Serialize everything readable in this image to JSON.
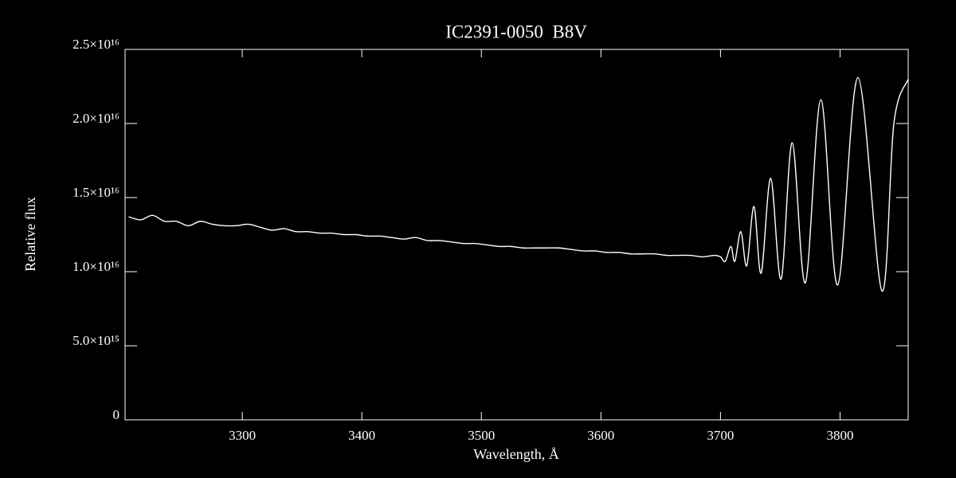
{
  "chart_data": {
    "type": "line",
    "title": "IC2391-0050  B8V",
    "xlabel": "Wavelength, Å",
    "ylabel": "Relative flux",
    "xlim": [
      3202,
      3857
    ],
    "ylim": [
      0,
      2.5e+16
    ],
    "xticks": [
      3300,
      3400,
      3500,
      3600,
      3700,
      3800
    ],
    "yticks": [
      0,
      {
        "value": 5000000000000000.0,
        "label": "5.0×10¹⁵"
      },
      {
        "value": 1e+16,
        "label": "1.0×10¹⁶"
      },
      {
        "value": 1.5e+16,
        "label": "1.5×10¹⁶"
      },
      {
        "value": 2e+16,
        "label": "2.0×10¹⁶"
      },
      {
        "value": 2.5e+16,
        "label": "2.5×10¹⁶"
      }
    ],
    "x": [
      3205,
      3215,
      3225,
      3235,
      3245,
      3255,
      3265,
      3275,
      3285,
      3295,
      3305,
      3315,
      3325,
      3335,
      3345,
      3355,
      3365,
      3375,
      3385,
      3395,
      3405,
      3415,
      3425,
      3435,
      3445,
      3455,
      3465,
      3475,
      3485,
      3495,
      3505,
      3515,
      3525,
      3535,
      3545,
      3555,
      3565,
      3575,
      3585,
      3595,
      3605,
      3615,
      3625,
      3635,
      3645,
      3655,
      3665,
      3675,
      3685,
      3695,
      3700,
      3704,
      3708.7,
      3712,
      3717,
      3722,
      3728,
      3734,
      3742,
      3750.7,
      3760,
      3771,
      3784,
      3798,
      3815,
      3835,
      3845,
      3857
    ],
    "series": [
      {
        "color": "#ffffff",
        "values": [
          1.37e+16,
          1.35e+16,
          1.38e+16,
          1.34e+16,
          1.34e+16,
          1.31e+16,
          1.34e+16,
          1.32e+16,
          1.31e+16,
          1.31e+16,
          1.32e+16,
          1.3e+16,
          1.28e+16,
          1.29e+16,
          1.27e+16,
          1.27e+16,
          1.26e+16,
          1.26e+16,
          1.25e+16,
          1.25e+16,
          1.24e+16,
          1.24e+16,
          1.23e+16,
          1.22e+16,
          1.23e+16,
          1.21e+16,
          1.21e+16,
          1.2e+16,
          1.19e+16,
          1.19e+16,
          1.18e+16,
          1.17e+16,
          1.17e+16,
          1.16e+16,
          1.16e+16,
          1.16e+16,
          1.16e+16,
          1.15e+16,
          1.14e+16,
          1.14e+16,
          1.13e+16,
          1.13e+16,
          1.12e+16,
          1.12e+16,
          1.12e+16,
          1.11e+16,
          1.11e+16,
          1.11e+16,
          1.1e+16,
          1.11e+16,
          1.1e+16,
          1.07e+16,
          1.17e+16,
          1.07e+16,
          1.27e+16,
          1.04e+16,
          1.44e+16,
          9900000000000000.0,
          1.63e+16,
          9500000000000000.0,
          1.87e+16,
          9250000000000000.0,
          2.16e+16,
          9100000000000000.0,
          2.31e+16,
          8700000000000000.0,
          2e+16,
          2.3e+16
        ]
      }
    ]
  }
}
